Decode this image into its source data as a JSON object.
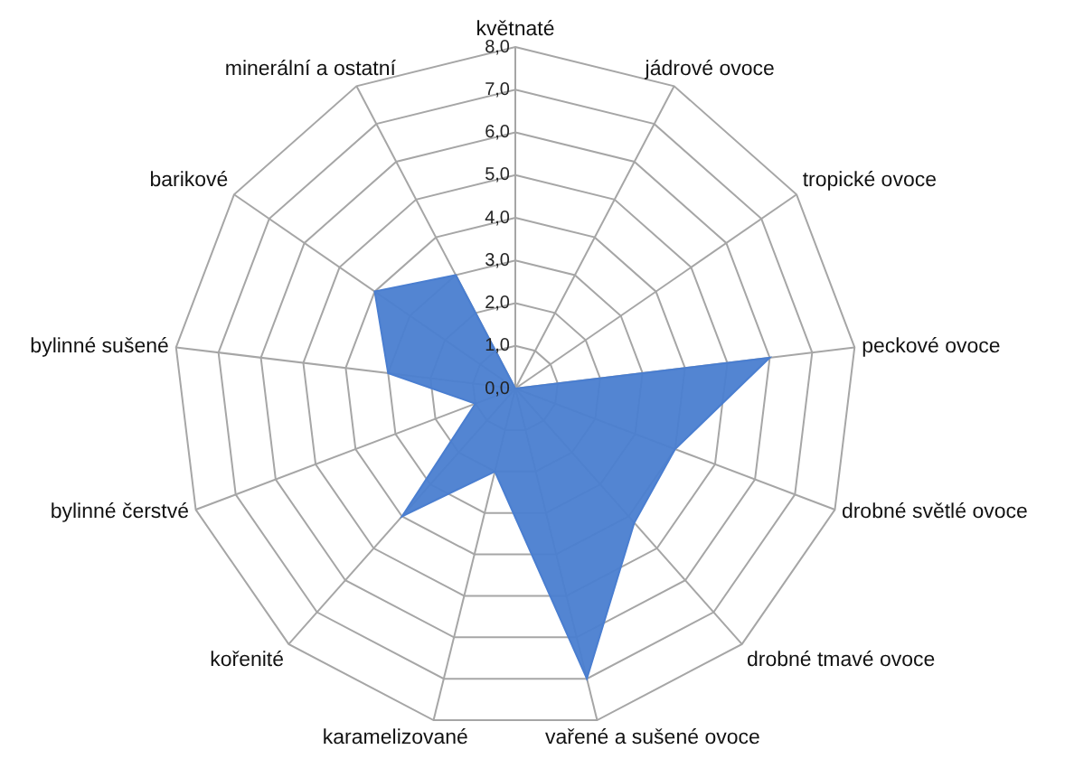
{
  "chart_data": {
    "type": "radar",
    "categories": [
      "květnaté",
      "jádrové ovoce",
      "tropické ovoce",
      "peckové ovoce",
      "drobné světlé ovoce",
      "drobné tmavé ovoce",
      "vařené a sušené ovoce",
      "karamelizované",
      "kořenité",
      "bylinné čerstvé",
      "bylinné sušené",
      "barikové",
      "minerální a ostatní"
    ],
    "series": [
      {
        "color": "#4a7ed0",
        "values": [
          0,
          0,
          0,
          6,
          4,
          4.2,
          7,
          2,
          4,
          1,
          3,
          4,
          3
        ]
      }
    ],
    "ylim": [
      0,
      8
    ],
    "yticks": [
      {
        "value": 0,
        "label": "0,0"
      },
      {
        "value": 1,
        "label": "1,0"
      },
      {
        "value": 2,
        "label": "2,0"
      },
      {
        "value": 3,
        "label": "3,0"
      },
      {
        "value": 4,
        "label": "4,0"
      },
      {
        "value": 5,
        "label": "5,0"
      },
      {
        "value": 6,
        "label": "6,0"
      },
      {
        "value": 7,
        "label": "7,0"
      },
      {
        "value": 8,
        "label": "8,0"
      }
    ],
    "grid": true
  }
}
